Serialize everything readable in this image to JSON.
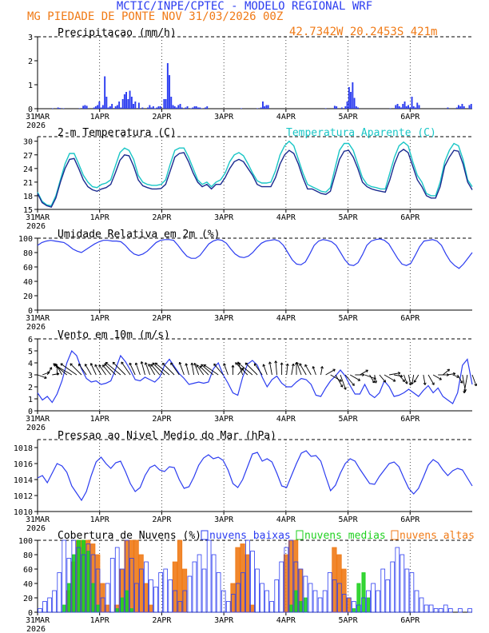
{
  "header": {
    "line1": "MCTIC/INPE/CPTEC - MODELO REGIONAL WRF",
    "line2": "MG PIEDADE DE PONTE NOV   31/03/2026 00Z",
    "coords": "42.7342W 20.2453S 421m"
  },
  "colors": {
    "blue": "#2b3cf0",
    "orange": "#f07a16",
    "cyan": "#19c6c6",
    "green": "#1fd01f",
    "navy": "#1a2a8f",
    "black": "#000000"
  },
  "x_ticks": [
    "31MAR",
    "1APR",
    "2APR",
    "3APR",
    "4APR",
    "5APR",
    "6APR"
  ],
  "x_year": "2026",
  "chart_data": [
    {
      "id": "precip",
      "type": "bar",
      "title": "Precipitacao (mm/h)",
      "ylim": [
        0,
        3
      ],
      "yticks": [
        0,
        1,
        2,
        3
      ],
      "values": [
        0,
        0,
        0,
        0,
        0,
        0,
        0,
        0,
        0.02,
        0,
        0,
        0.05,
        0.03,
        0,
        0.02,
        0,
        0,
        0,
        0,
        0,
        0,
        0,
        0,
        0.02,
        0,
        0.12,
        0.15,
        0.12,
        0,
        0,
        0,
        0.05,
        0.1,
        0.15,
        0.3,
        0.05,
        0.15,
        1.35,
        0.5,
        0.05,
        0.1,
        0.2,
        0,
        0.1,
        0.15,
        0.3,
        0.05,
        0.4,
        0.6,
        0.7,
        0.4,
        0.75,
        0.5,
        0.2,
        0.3,
        0,
        0.25,
        0,
        0.05,
        0,
        0,
        0.05,
        0.15,
        0.05,
        0.1,
        0.02,
        0.05,
        0.1,
        0.1,
        0,
        0.4,
        0.4,
        1.9,
        1.4,
        0.5,
        0.15,
        0.1,
        0.05,
        0.15,
        0.2,
        0.05,
        0,
        0.05,
        0.1,
        0,
        0.02,
        0.05,
        0.1,
        0.1,
        0.05,
        0.05,
        0.02,
        0,
        0.05,
        0.1,
        0,
        0,
        0,
        0,
        0,
        0,
        0,
        0,
        0,
        0,
        0,
        0,
        0,
        0,
        0,
        0,
        0,
        0,
        0.02,
        0,
        0,
        0,
        0,
        0,
        0,
        0,
        0,
        0.02,
        0,
        0.05,
        0.3,
        0.1,
        0.15,
        0.15,
        0,
        0,
        0,
        0,
        0,
        0,
        0,
        0,
        0,
        0,
        0,
        0,
        0,
        0,
        0,
        0,
        0,
        0,
        0,
        0,
        0,
        0,
        0,
        0,
        0,
        0,
        0,
        0,
        0,
        0,
        0,
        0.02,
        0,
        0,
        0,
        0,
        0.12,
        0.1,
        0,
        0,
        0.05,
        0,
        0.1,
        0.3,
        0.9,
        0.7,
        1.1,
        0.45,
        0.1,
        0.05,
        0,
        0,
        0,
        0,
        0,
        0,
        0,
        0,
        0,
        0,
        0,
        0,
        0,
        0,
        0,
        0,
        0,
        0.02,
        0,
        0,
        0.15,
        0.2,
        0.1,
        0.05,
        0.2,
        0.3,
        0.1,
        0.15,
        0.05,
        0.5,
        0.1,
        0.05,
        0.25,
        0.15,
        0,
        0,
        0,
        0,
        0,
        0,
        0,
        0,
        0,
        0,
        0,
        0,
        0,
        0,
        0,
        0.05,
        0,
        0,
        0,
        0,
        0.05,
        0.15,
        0.1,
        0.2,
        0.1,
        0,
        0,
        0.15,
        0.2
      ]
    },
    {
      "id": "temp",
      "type": "line",
      "title": "2-m Temperatura (C)",
      "legend": "Temperatura Aparente (C)",
      "ylim": [
        15,
        31
      ],
      "yticks": [
        15,
        18,
        21,
        24,
        27,
        30
      ],
      "series": [
        {
          "name": "Temperatura",
          "key": "T",
          "values": [
            18.5,
            16.5,
            15.8,
            15.5,
            17.5,
            21,
            24,
            26,
            26.2,
            24,
            21.5,
            20,
            19.3,
            19,
            19.5,
            19.8,
            20.5,
            23,
            25.8,
            27,
            26.8,
            24.5,
            21.5,
            20.2,
            19.8,
            19.5,
            19.5,
            19.6,
            20.5,
            23.5,
            26.5,
            27.3,
            27.5,
            25.5,
            23,
            21,
            20,
            20.5,
            19.5,
            20.5,
            20.5,
            22,
            24,
            25.5,
            26,
            25.5,
            24,
            22.5,
            20.5,
            20,
            20,
            20,
            22,
            25,
            27,
            28,
            27.3,
            25,
            22,
            19.5,
            19.5,
            19,
            18.5,
            18.3,
            19,
            22.5,
            26,
            27.8,
            28,
            26.5,
            24,
            21,
            20,
            19.5,
            19.2,
            19,
            18.8,
            21.5,
            25,
            27.5,
            28.2,
            27.5,
            24.5,
            21.5,
            20,
            18,
            17.5,
            17.5,
            20,
            24.5,
            26.5,
            28,
            27.8,
            25,
            21,
            19.3
          ]
        },
        {
          "name": "Temperatura Aparente",
          "key": "TA",
          "values": [
            18.8,
            16.8,
            16,
            15.8,
            18,
            21.5,
            25,
            27.3,
            27.3,
            25,
            22.5,
            21,
            20,
            19.8,
            20.5,
            20.8,
            21.5,
            24.5,
            27.5,
            28.5,
            28,
            26,
            22.5,
            21,
            20.5,
            20.3,
            20.3,
            20.5,
            21.5,
            25,
            28,
            28.5,
            28.5,
            26.5,
            24,
            21.5,
            20.5,
            21,
            20,
            21,
            21.5,
            23,
            25.5,
            27,
            27.5,
            26.8,
            25,
            23,
            21.3,
            20.8,
            20.8,
            21,
            23.5,
            27,
            29,
            30,
            29,
            26,
            23,
            20.5,
            20,
            19.5,
            19,
            18.8,
            19.8,
            24,
            28,
            29.5,
            29.5,
            28,
            25,
            22,
            20.5,
            20,
            19.8,
            19.5,
            19.5,
            23,
            26.5,
            29,
            29.8,
            29,
            25.5,
            22.5,
            21,
            18.5,
            18,
            18,
            21,
            25.5,
            28,
            29.5,
            29,
            26,
            21.5,
            20
          ]
        }
      ]
    },
    {
      "id": "rh",
      "type": "line",
      "title": "Umidade Relativa em 2m (%)",
      "ylim": [
        0,
        100
      ],
      "yticks": [
        0,
        20,
        40,
        60,
        80,
        100
      ],
      "values": [
        90,
        94,
        96,
        97,
        96,
        95,
        94,
        90,
        85,
        82,
        80,
        84,
        88,
        92,
        95,
        97,
        97,
        96,
        96,
        95,
        90,
        83,
        78,
        76,
        78,
        82,
        88,
        94,
        97,
        98,
        98,
        97,
        90,
        82,
        75,
        72,
        72,
        76,
        84,
        92,
        96,
        98,
        97,
        93,
        85,
        78,
        74,
        73,
        75,
        80,
        87,
        93,
        96,
        97,
        98,
        96,
        90,
        80,
        70,
        64,
        63,
        67,
        78,
        90,
        96,
        98,
        97,
        95,
        90,
        80,
        70,
        63,
        62,
        66,
        77,
        90,
        96,
        98,
        99,
        97,
        92,
        82,
        72,
        64,
        62,
        65,
        76,
        88,
        96,
        97,
        98,
        96,
        90,
        78,
        68,
        62,
        58,
        64,
        72,
        80
      ]
    },
    {
      "id": "wind",
      "type": "line",
      "title": "Vento em 10m (m/s)",
      "ylim": [
        0,
        6
      ],
      "yticks": [
        0,
        1,
        2,
        3,
        4,
        5,
        6
      ],
      "arrow_level": 3,
      "values": [
        1.5,
        0.9,
        1.2,
        0.7,
        1.4,
        2.5,
        4,
        5,
        4.6,
        3.5,
        2.7,
        2.4,
        2.5,
        2.2,
        2.3,
        2.5,
        3.5,
        4.6,
        4.1,
        3.4,
        2.6,
        2.5,
        2.8,
        2.6,
        2.4,
        2.8,
        3.8,
        4.3,
        3.7,
        3.1,
        2.7,
        2.2,
        2.3,
        2.4,
        2.3,
        2.4,
        3.5,
        4,
        3,
        2.3,
        1.5,
        1.3,
        2.8,
        3.9,
        4.2,
        3.8,
        2.8,
        2,
        2.6,
        2.9,
        2.3,
        2,
        2,
        2.4,
        2.7,
        2.6,
        2.2,
        1.3,
        1.2,
        1.9,
        2.5,
        2.9,
        3.4,
        2.9,
        2.1,
        1.4,
        1.4,
        2.2,
        1.4,
        1.1,
        1.5,
        2.5,
        2,
        1.2,
        1.3,
        1.5,
        1.8,
        1.5,
        1.2,
        1.7,
        2.1,
        1.5,
        1.9,
        1.2,
        0.9,
        0.6,
        1.5,
        3.8,
        4.3,
        2.2
      ],
      "arrow_dirs": [
        70,
        110,
        150,
        100,
        180,
        210,
        230,
        240,
        235,
        225,
        215,
        210,
        205,
        210,
        215,
        220,
        225,
        230,
        225,
        215,
        205,
        200,
        195,
        200,
        210,
        220,
        225,
        230,
        225,
        215,
        200,
        195,
        190,
        200,
        215,
        225,
        230,
        235,
        220,
        200,
        180,
        140,
        200,
        225,
        230,
        225,
        215,
        200,
        190,
        185,
        180,
        175,
        170,
        180,
        200,
        210,
        210,
        200,
        170,
        120,
        60,
        30,
        20,
        40,
        60,
        90,
        120,
        70,
        30,
        10,
        40,
        60,
        100,
        80,
        40,
        20,
        10,
        350,
        330,
        10,
        30,
        60,
        90,
        130,
        100,
        70,
        30,
        10,
        350,
        20
      ]
    },
    {
      "id": "pres",
      "type": "line",
      "title": "Pressao ao Nivel Medio do Mar (hPa)",
      "ylim": [
        1010,
        1019
      ],
      "yticks": [
        1010,
        1012,
        1014,
        1016,
        1018
      ],
      "values": [
        1014.2,
        1014.5,
        1013.6,
        1014.8,
        1016,
        1015.7,
        1014.9,
        1013.2,
        1012.3,
        1011.4,
        1012.5,
        1014.5,
        1016.2,
        1016.8,
        1016,
        1015.4,
        1016.1,
        1016.3,
        1015,
        1013.5,
        1012.5,
        1013,
        1014.5,
        1015.5,
        1015.8,
        1015.2,
        1015,
        1015.6,
        1015.5,
        1014,
        1012.9,
        1013.1,
        1014.3,
        1015.8,
        1016.7,
        1017.1,
        1016.6,
        1016.8,
        1016.4,
        1015.2,
        1013.5,
        1013,
        1014,
        1015.6,
        1017.2,
        1017.4,
        1016.3,
        1016.6,
        1016.2,
        1014.8,
        1013.2,
        1013,
        1014.5,
        1016,
        1017.3,
        1017.6,
        1016.9,
        1017,
        1016.3,
        1014.4,
        1012.6,
        1013.3,
        1014.8,
        1016,
        1016.6,
        1016.3,
        1015.3,
        1014.4,
        1013.5,
        1013.4,
        1014.4,
        1015.2,
        1016,
        1016.2,
        1015.6,
        1014.2,
        1012.9,
        1012.2,
        1012.9,
        1014.3,
        1015.8,
        1016.5,
        1016.1,
        1015.2,
        1014.5,
        1015.1,
        1015.4,
        1015.2,
        1014.2,
        1013.2
      ]
    },
    {
      "id": "clouds",
      "type": "bar",
      "title": "Cobertura de Nuvens (%)",
      "ylim": [
        0,
        100
      ],
      "yticks": [
        0,
        20,
        40,
        60,
        80,
        100
      ],
      "legend": [
        "nuvens baixas",
        "nuvens medias",
        "nuvens altas"
      ],
      "series": [
        {
          "name": "nuvens baixas",
          "key": "low",
          "values": [
            5,
            15,
            20,
            30,
            55,
            100,
            75,
            100,
            90,
            80,
            95,
            80,
            60,
            20,
            40,
            75,
            90,
            60,
            100,
            75,
            40,
            60,
            70,
            45,
            35,
            55,
            60,
            45,
            30,
            15,
            30,
            50,
            70,
            80,
            60,
            100,
            80,
            55,
            30,
            15,
            25,
            40,
            55,
            100,
            85,
            60,
            40,
            30,
            15,
            45,
            70,
            90,
            100,
            70,
            60,
            50,
            40,
            30,
            20,
            30,
            55,
            45,
            40,
            25,
            20,
            15,
            10,
            20,
            30,
            40,
            30,
            60,
            45,
            70,
            90,
            80,
            60,
            55,
            30,
            20,
            10,
            10,
            5,
            5,
            10,
            5,
            0,
            5,
            0,
            5
          ]
        },
        {
          "name": "nuvens medias",
          "key": "mid",
          "values": [
            0,
            0,
            0,
            0,
            0,
            10,
            40,
            80,
            100,
            100,
            85,
            40,
            10,
            0,
            0,
            0,
            5,
            20,
            30,
            5,
            0,
            0,
            0,
            0,
            0,
            0,
            0,
            0,
            0,
            0,
            0,
            0,
            0,
            0,
            0,
            0,
            0,
            0,
            0,
            0,
            0,
            0,
            0,
            0,
            0,
            0,
            0,
            0,
            0,
            0,
            0,
            0,
            10,
            30,
            15,
            20,
            0,
            0,
            0,
            0,
            0,
            0,
            0,
            0,
            0,
            5,
            40,
            55,
            20,
            0,
            0,
            0,
            0,
            0,
            0,
            0,
            0,
            0,
            0,
            0,
            0,
            0,
            0,
            0,
            0,
            0,
            0,
            0,
            0,
            0
          ]
        },
        {
          "name": "nuvens altas",
          "key": "high",
          "values": [
            0,
            0,
            0,
            0,
            0,
            0,
            30,
            70,
            100,
            100,
            100,
            95,
            80,
            40,
            10,
            0,
            10,
            60,
            100,
            100,
            100,
            80,
            40,
            10,
            0,
            0,
            0,
            0,
            70,
            100,
            60,
            0,
            0,
            0,
            0,
            0,
            0,
            0,
            0,
            0,
            40,
            90,
            95,
            80,
            10,
            0,
            0,
            0,
            0,
            0,
            0,
            80,
            100,
            100,
            60,
            0,
            0,
            0,
            0,
            0,
            0,
            90,
            80,
            60,
            20,
            0,
            0,
            0,
            0,
            0,
            0,
            0,
            0,
            0,
            0,
            0,
            0,
            0,
            0,
            0,
            0,
            0,
            0,
            0,
            0,
            0,
            0,
            0,
            0,
            0
          ]
        }
      ]
    }
  ]
}
